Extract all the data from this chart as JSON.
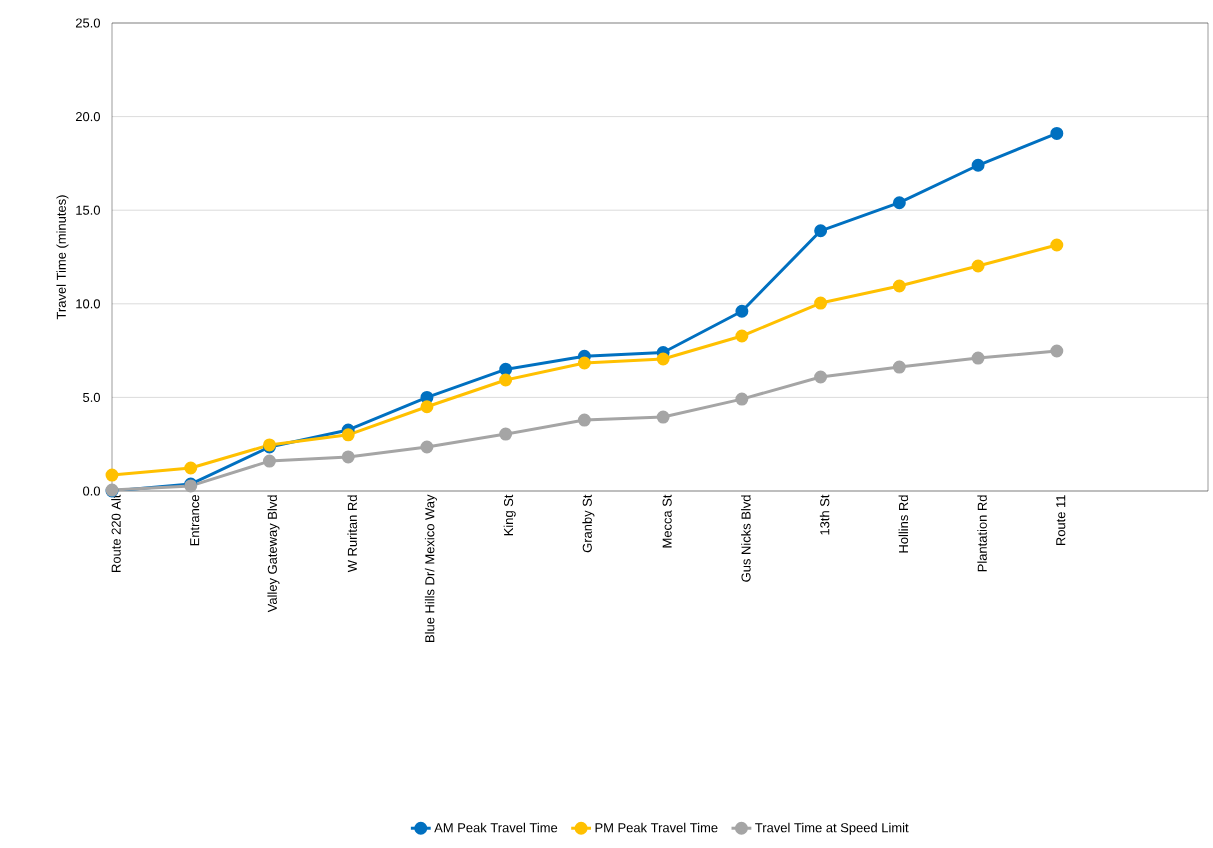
{
  "chart_data": {
    "type": "line",
    "ylabel": "Travel Time (minutes)",
    "categories": [
      "Route 220 Alt",
      "Entrance",
      "Valley Gateway Blvd",
      "W Ruritan Rd",
      "Blue Hills Dr/ Mexico Way",
      "King St",
      "Granby St",
      "Mecca St",
      "Gus Nicks Blvd",
      "13th St",
      "Hollins Rd",
      "Plantation Rd",
      "Route 11"
    ],
    "ylim": [
      0,
      25
    ],
    "yticks": [
      {
        "value": 0,
        "label": "0.0"
      },
      {
        "value": 5,
        "label": "5.0"
      },
      {
        "value": 10,
        "label": "10.0"
      },
      {
        "value": 15,
        "label": "15.0"
      },
      {
        "value": 20,
        "label": "20.0"
      },
      {
        "value": 25,
        "label": "25.0"
      }
    ],
    "grid": "y",
    "legend": "bottom",
    "marker": "circle",
    "line_style": "solid",
    "series": [
      {
        "name": "AM Peak Travel Time",
        "color": "#0070c0",
        "values": [
          0.0,
          0.37,
          2.35,
          3.26,
          5.0,
          6.5,
          7.2,
          7.4,
          9.6,
          13.9,
          15.4,
          17.4,
          19.1
        ]
      },
      {
        "name": "PM Peak Travel Time",
        "color": "#ffc000",
        "values": [
          0.85,
          1.23,
          2.46,
          3.0,
          4.5,
          5.93,
          6.84,
          7.05,
          8.28,
          10.04,
          10.95,
          12.02,
          13.14
        ]
      },
      {
        "name": "Travel Time at Speed Limit",
        "color": "#a5a5a5",
        "values": [
          0.05,
          0.27,
          1.6,
          1.82,
          2.35,
          3.04,
          3.79,
          3.95,
          4.91,
          6.09,
          6.62,
          7.1,
          7.48
        ]
      }
    ]
  }
}
